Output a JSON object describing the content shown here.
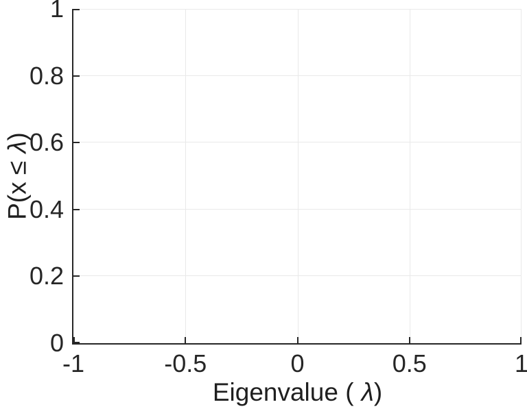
{
  "figure": {
    "background_color": "#ffffff",
    "axis_color": "#262626",
    "grid_color": "#e9e9e9",
    "text_color": "#1f1f1f",
    "xlabel_prefix": "Eigenvalue (",
    "ylabel_prefix": "P(x ≤",
    "lambda_symbol": "λ",
    "label_suffix": ")",
    "x_ticks": [
      "-1",
      "-0.5",
      "0",
      "0.5",
      "1"
    ],
    "y_ticks": [
      "0",
      "0.2",
      "0.4",
      "0.6",
      "0.8",
      "1"
    ]
  },
  "chart_data": {
    "type": "line",
    "title": "",
    "xlabel": "Eigenvalue ( λ)",
    "ylabel": "P(x ≤ λ)",
    "xlim": [
      -1,
      1
    ],
    "ylim": [
      0,
      1
    ],
    "x_tick_values": [
      -1,
      -0.5,
      0,
      0.5,
      1
    ],
    "y_tick_values": [
      0,
      0.2,
      0.4,
      0.6,
      0.8,
      1
    ],
    "grid": true,
    "legend": null,
    "series": []
  }
}
